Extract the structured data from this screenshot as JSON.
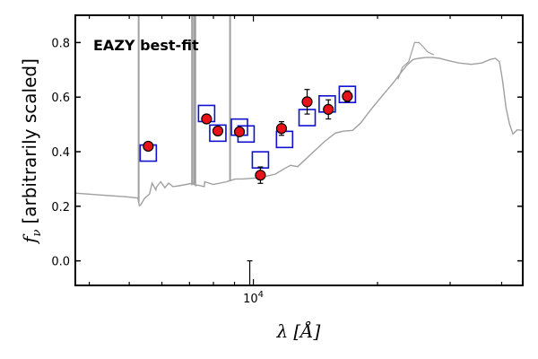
{
  "chart_data": {
    "type": "scatter",
    "annotation": "EAZY best-fit",
    "xlabel_symbol": "λ",
    "xlabel_unit": "[Å]",
    "ylabel_symbol": "f",
    "ylabel_sub": "ν",
    "ylabel_text": "[arbitrarily scaled]",
    "x_scale": "log",
    "xlim": [
      3700,
      45000
    ],
    "ylim": [
      -0.09,
      0.9
    ],
    "x_ticks": [
      {
        "value": 10000,
        "label": "10",
        "exp": "4"
      }
    ],
    "y_ticks": [
      {
        "value": 0.0,
        "label": "0.0"
      },
      {
        "value": 0.2,
        "label": "0.2"
      },
      {
        "value": 0.4,
        "label": "0.4"
      },
      {
        "value": 0.6,
        "label": "0.6"
      },
      {
        "value": 0.8,
        "label": "0.8"
      }
    ],
    "colors": {
      "template": "#a0a0a0",
      "observed_fill": "#e8121a",
      "model_box": "#1010d0",
      "annotation": "#ff0000"
    },
    "best_fit_template": {
      "name": "EAZY best-fit",
      "continuum": [
        [
          3700,
          0.248
        ],
        [
          4200,
          0.242
        ],
        [
          4900,
          0.235
        ],
        [
          5250,
          0.23
        ],
        [
          5290,
          0.202
        ],
        [
          5330,
          0.205
        ],
        [
          5450,
          0.23
        ],
        [
          5600,
          0.245
        ],
        [
          5800,
          0.26
        ],
        [
          6100,
          0.268
        ],
        [
          6600,
          0.275
        ],
        [
          7300,
          0.278
        ],
        [
          7600,
          0.272
        ],
        [
          8000,
          0.28
        ],
        [
          8600,
          0.29
        ],
        [
          9400,
          0.3
        ],
        [
          10400,
          0.305
        ],
        [
          11300,
          0.318
        ],
        [
          11800,
          0.335
        ],
        [
          12300,
          0.35
        ],
        [
          12800,
          0.345
        ],
        [
          13300,
          0.368
        ],
        [
          14000,
          0.4
        ],
        [
          14900,
          0.438
        ],
        [
          15800,
          0.468
        ],
        [
          16500,
          0.475
        ],
        [
          17400,
          0.478
        ],
        [
          18200,
          0.505
        ],
        [
          19400,
          0.56
        ],
        [
          20800,
          0.615
        ],
        [
          21900,
          0.655
        ],
        [
          22800,
          0.69
        ],
        [
          23600,
          0.718
        ],
        [
          24400,
          0.738
        ],
        [
          25200,
          0.742
        ],
        [
          26200,
          0.745
        ],
        [
          27200,
          0.745
        ],
        [
          28300,
          0.742
        ],
        [
          29500,
          0.735
        ],
        [
          31500,
          0.725
        ],
        [
          33800,
          0.72
        ],
        [
          35800,
          0.725
        ],
        [
          37500,
          0.738
        ],
        [
          38600,
          0.742
        ],
        [
          39500,
          0.73
        ],
        [
          40200,
          0.66
        ],
        [
          41000,
          0.56
        ],
        [
          41800,
          0.5
        ],
        [
          42600,
          0.465
        ],
        [
          43600,
          0.48
        ],
        [
          45000,
          0.478
        ]
      ],
      "bumps": [
        [
          5680,
          0.285
        ],
        [
          5820,
          0.27
        ],
        [
          5960,
          0.29
        ],
        [
          6230,
          0.285
        ],
        [
          6380,
          0.272
        ],
        [
          7150,
          0.285
        ],
        [
          7250,
          0.275
        ],
        [
          7620,
          0.29
        ],
        [
          9050,
          0.3
        ]
      ],
      "emission_lines": [
        [
          5270,
          0.92
        ],
        [
          7100,
          0.92
        ],
        [
          7180,
          0.92
        ],
        [
          7230,
          0.92
        ],
        [
          8780,
          0.92
        ]
      ],
      "hump": [
        [
          22400,
          0.665
        ],
        [
          23000,
          0.71
        ],
        [
          23800,
          0.73
        ],
        [
          24600,
          0.8
        ],
        [
          25200,
          0.8
        ],
        [
          25800,
          0.785
        ],
        [
          26500,
          0.765
        ],
        [
          27400,
          0.755
        ]
      ]
    },
    "series": [
      {
        "name": "observed photometry",
        "points": [
          {
            "x": 5560,
            "y": 0.42,
            "err": 0.013
          },
          {
            "x": 7700,
            "y": 0.52,
            "err": 0.012
          },
          {
            "x": 8200,
            "y": 0.476,
            "err": 0.012
          },
          {
            "x": 9250,
            "y": 0.473,
            "err": 0.012
          },
          {
            "x": 10400,
            "y": 0.314,
            "err": 0.03
          },
          {
            "x": 11700,
            "y": 0.485,
            "err": 0.025
          },
          {
            "x": 13500,
            "y": 0.583,
            "err": 0.045
          },
          {
            "x": 15200,
            "y": 0.555,
            "err": 0.035
          },
          {
            "x": 16900,
            "y": 0.603,
            "err": 0.02
          },
          {
            "x": 9800,
            "y": 0.0,
            "err": 0.0,
            "upper": 0.0,
            "lower": -0.09
          }
        ]
      },
      {
        "name": "model photometry",
        "points": [
          {
            "x": 5560,
            "y": 0.395
          },
          {
            "x": 7700,
            "y": 0.54
          },
          {
            "x": 8200,
            "y": 0.468
          },
          {
            "x": 9250,
            "y": 0.49
          },
          {
            "x": 9600,
            "y": 0.465
          },
          {
            "x": 10400,
            "y": 0.37
          },
          {
            "x": 11900,
            "y": 0.445
          },
          {
            "x": 13500,
            "y": 0.525
          },
          {
            "x": 15100,
            "y": 0.575
          },
          {
            "x": 16900,
            "y": 0.61
          }
        ]
      }
    ]
  }
}
